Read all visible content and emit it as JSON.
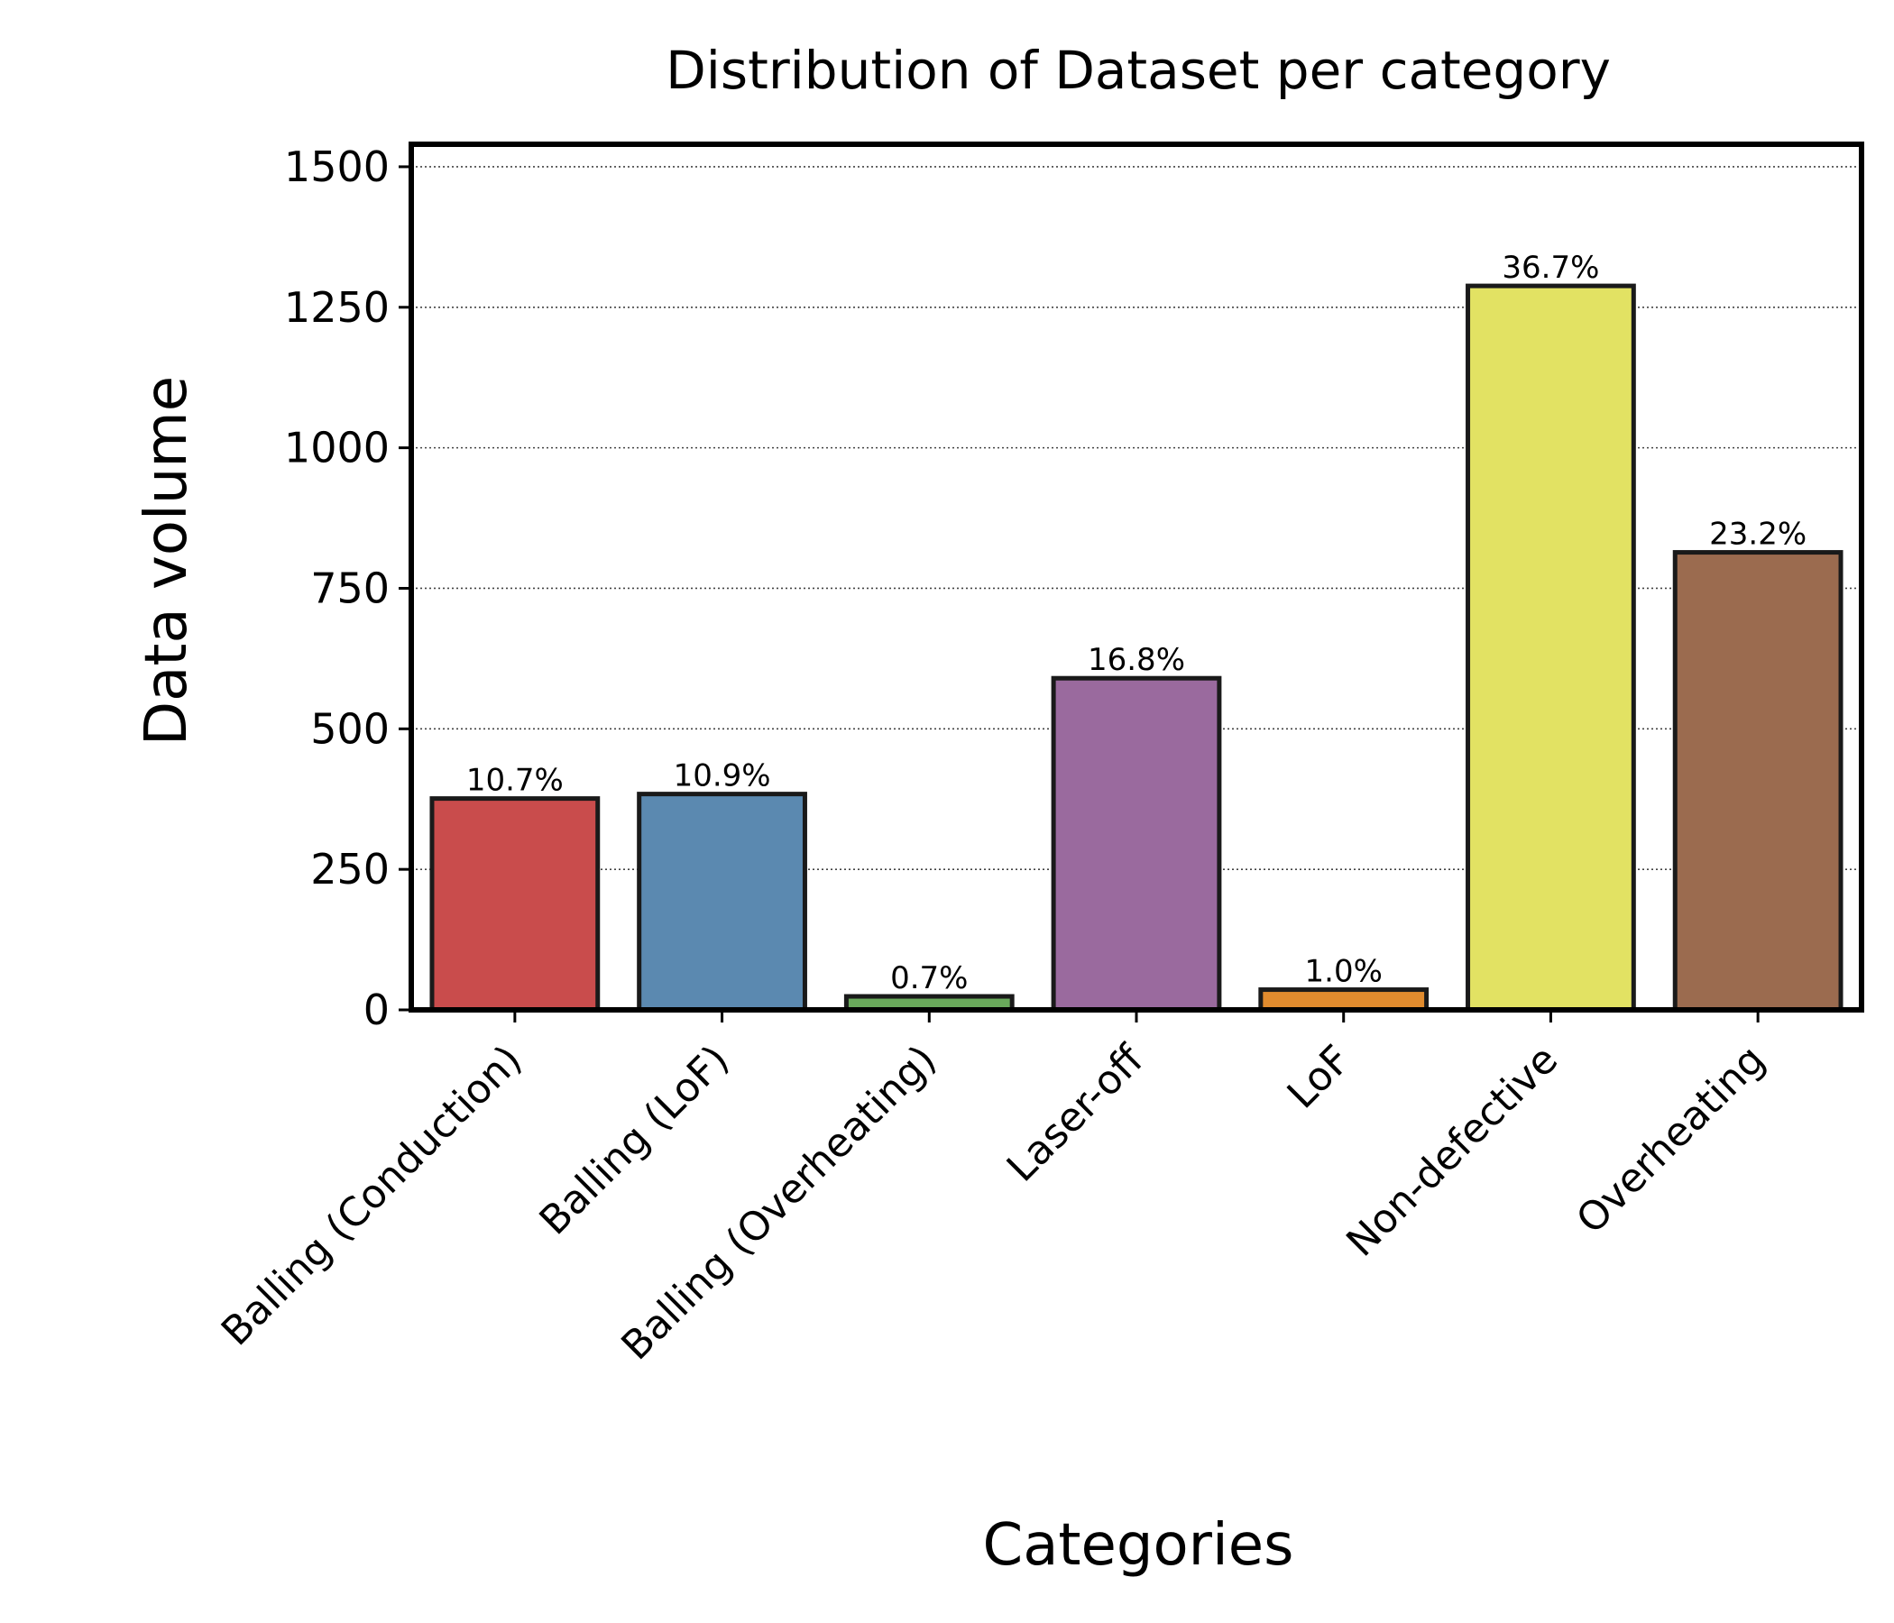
{
  "chart_data": {
    "type": "bar",
    "title": "Distribution of Dataset per category",
    "xlabel": "Categories",
    "ylabel": "Data volume",
    "ylim": [
      0,
      1540
    ],
    "yticks": [
      0,
      250,
      500,
      750,
      1000,
      1250,
      1500
    ],
    "ytick_labels": [
      "0",
      "250",
      "500",
      "750",
      "1000",
      "1250",
      "1500"
    ],
    "grid": "horizontal dotted",
    "categories": [
      "Balling (Conduction)",
      "Balling (LoF)",
      "Balling (Overheating)",
      "Laser-off",
      "LoF",
      "Non-defective",
      "Overheating"
    ],
    "values": [
      376,
      384,
      24,
      590,
      36,
      1288,
      814
    ],
    "data_labels": [
      "10.7%",
      "10.9%",
      "0.7%",
      "16.8%",
      "1.0%",
      "36.7%",
      "23.2%"
    ],
    "colors": [
      "#c94c4c",
      "#5b89b0",
      "#69a95b",
      "#9a6a9e",
      "#e08b2e",
      "#e2e263",
      "#9b6b4f"
    ],
    "bar_edge_color": "#1a1a1a"
  }
}
